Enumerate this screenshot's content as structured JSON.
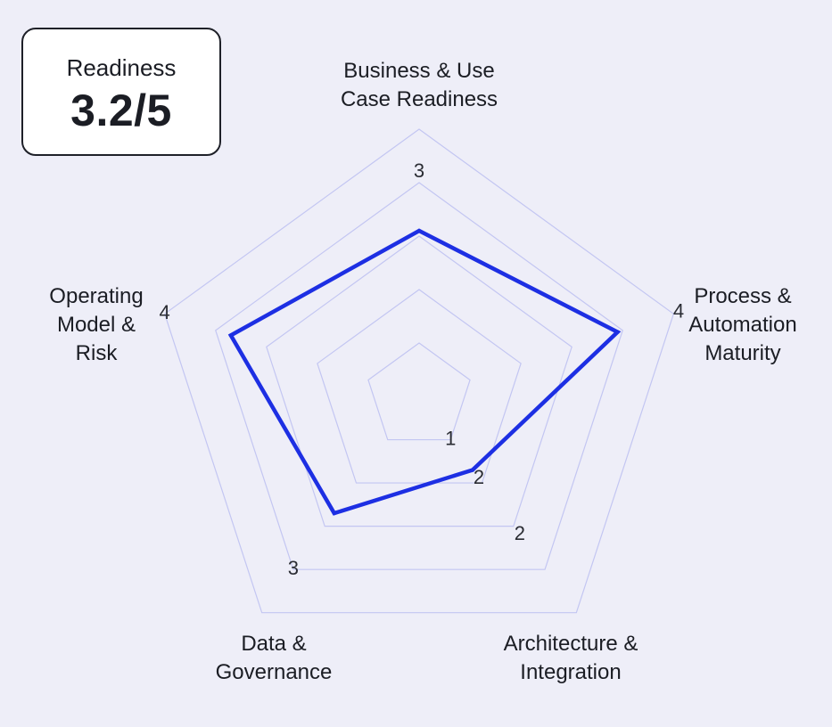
{
  "score_card": {
    "label": "Readiness",
    "value": "3.2/5"
  },
  "chart_data": {
    "type": "radar",
    "title": "",
    "axes": [
      "Business & Use\nCase Readiness",
      "Process &\nAutomation\nMaturity",
      "Architecture &\nIntegration",
      "Data &\nGovernance",
      "Operating\nModel &\nRisk"
    ],
    "rlim": [
      0,
      5
    ],
    "grid_levels": [
      1,
      2,
      3,
      4,
      5
    ],
    "series": [
      {
        "values": [
          3.1,
          3.9,
          1.7,
          2.7,
          3.7
        ],
        "color": "#1d2fe3"
      }
    ],
    "tick_labels": [
      {
        "text": "3",
        "axis": 0,
        "r": 4.2
      },
      {
        "text": "4",
        "axis": 1,
        "r": 5.1
      },
      {
        "text": "2",
        "axis": 2,
        "r": 3.2
      },
      {
        "text": "3",
        "axis": 3,
        "r": 4.0
      },
      {
        "text": "4",
        "axis": 4,
        "r": 5.0
      },
      {
        "text": "1",
        "axis": 2,
        "r": 1.0
      },
      {
        "text": "2",
        "axis": 2,
        "r": 1.9
      }
    ],
    "grid_color": "#c3c6f2"
  }
}
